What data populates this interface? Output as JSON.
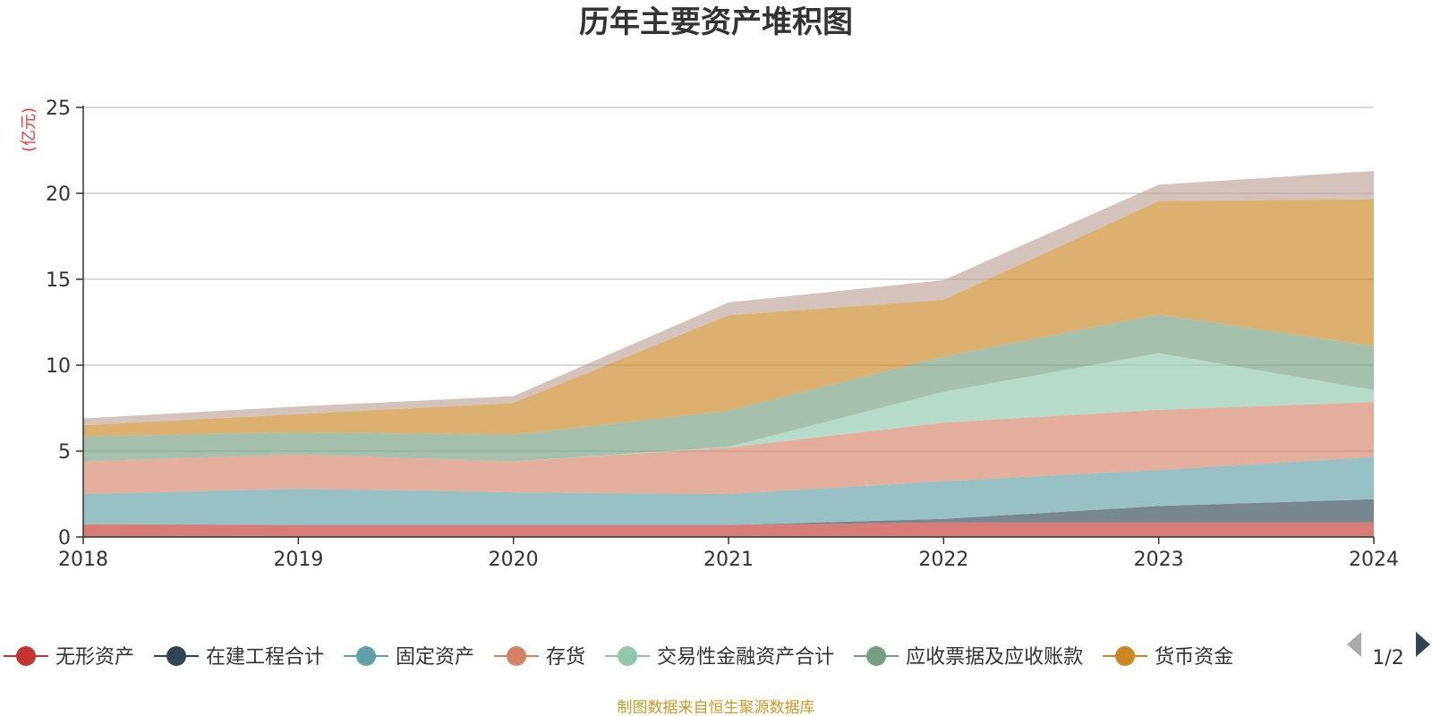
{
  "chart_data": {
    "type": "area",
    "stacked": true,
    "title": "历年主要资产堆积图",
    "unit": "(亿元)",
    "x": [
      "2018",
      "2019",
      "2020",
      "2021",
      "2022",
      "2023",
      "2024"
    ],
    "ylim": [
      0,
      25
    ],
    "yticks": [
      "0",
      "5",
      "10",
      "15",
      "20",
      "25"
    ],
    "grid": true,
    "legend_position": "bottom",
    "series": [
      {
        "name": "无形资产",
        "color": "#c23531",
        "values": [
          0.75,
          0.7,
          0.7,
          0.7,
          0.85,
          0.85,
          0.85
        ]
      },
      {
        "name": "在建工程合计",
        "color": "#2f4554",
        "values": [
          0.0,
          0.0,
          0.0,
          0.0,
          0.2,
          0.95,
          1.35
        ]
      },
      {
        "name": "固定资产",
        "color": "#61a0a8",
        "values": [
          1.75,
          2.1,
          1.9,
          1.8,
          2.2,
          2.1,
          2.45
        ]
      },
      {
        "name": "存货",
        "color": "#d48265",
        "values": [
          1.9,
          2.0,
          1.8,
          2.7,
          3.4,
          3.5,
          3.2
        ]
      },
      {
        "name": "交易性金融资产合计",
        "color": "#91c7ae",
        "values": [
          0.0,
          0.0,
          0.0,
          0.05,
          1.8,
          3.3,
          0.7
        ]
      },
      {
        "name": "应收票据及应收账款",
        "color": "#749f83",
        "values": [
          1.45,
          1.3,
          1.55,
          2.1,
          2.05,
          2.25,
          2.55
        ]
      },
      {
        "name": "货币资金",
        "color": "#ca8622",
        "values": [
          0.65,
          1.05,
          1.85,
          5.55,
          3.3,
          6.6,
          8.55
        ]
      },
      {
        "name": "",
        "color": "#bda29a",
        "values": [
          0.4,
          0.45,
          0.4,
          0.75,
          1.15,
          0.95,
          1.65
        ]
      }
    ],
    "pager": "1/2",
    "source": "制图数据来自恒生聚源数据库"
  }
}
